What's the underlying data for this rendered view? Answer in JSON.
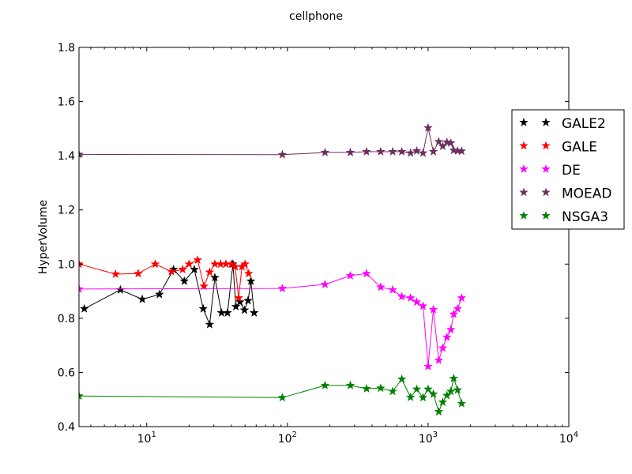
{
  "chart_data": {
    "type": "line",
    "title": "cellphone",
    "xlabel": "",
    "ylabel": "HyperVolume",
    "xscale": "log",
    "xlim": [
      3.3,
      10000
    ],
    "ylim": [
      0.4,
      1.8
    ],
    "yticks": [
      "0.4",
      "0.6",
      "0.8",
      "1.0",
      "1.2",
      "1.4",
      "1.6",
      "1.8"
    ],
    "xticks": [
      {
        "value": 10,
        "base": "10",
        "exp": "1"
      },
      {
        "value": 100,
        "base": "10",
        "exp": "2"
      },
      {
        "value": 1000,
        "base": "10",
        "exp": "3"
      },
      {
        "value": 10000,
        "base": "10",
        "exp": "4"
      }
    ],
    "grid": false,
    "legend_position": "right",
    "series": [
      {
        "name": "GALE2",
        "color": "#000000",
        "points": [
          [
            3.6,
            0.835
          ],
          [
            6.5,
            0.905
          ],
          [
            9.3,
            0.87
          ],
          [
            12.3,
            0.888
          ],
          [
            15.5,
            0.98
          ],
          [
            18.5,
            0.937
          ],
          [
            21.8,
            0.98
          ],
          [
            25.2,
            0.835
          ],
          [
            28,
            0.777
          ],
          [
            30.5,
            0.95
          ],
          [
            34,
            0.82
          ],
          [
            37.5,
            0.82
          ],
          [
            41,
            1.0
          ],
          [
            43,
            0.843
          ],
          [
            46,
            0.86
          ],
          [
            49.5,
            0.83
          ],
          [
            52.5,
            0.865
          ],
          [
            55,
            0.937
          ],
          [
            58,
            0.82
          ]
        ]
      },
      {
        "name": "GALE",
        "color": "#ff0000",
        "points": [
          [
            3.3,
            1.0
          ],
          [
            6,
            0.963
          ],
          [
            8.7,
            0.965
          ],
          [
            11.5,
            1.0
          ],
          [
            15,
            0.972
          ],
          [
            18,
            0.98
          ],
          [
            20,
            1.0
          ],
          [
            23,
            1.015
          ],
          [
            25.5,
            0.918
          ],
          [
            28,
            0.97
          ],
          [
            30.5,
            1.0
          ],
          [
            33.5,
            1.0
          ],
          [
            36.5,
            1.0
          ],
          [
            40,
            1.0
          ],
          [
            42.5,
            0.99
          ],
          [
            45,
            0.875
          ],
          [
            47.5,
            0.99
          ],
          [
            50,
            1.0
          ],
          [
            53,
            0.965
          ]
        ]
      },
      {
        "name": "DE",
        "color": "#ff00ff",
        "points": [
          [
            3.3,
            0.908
          ],
          [
            92,
            0.91
          ],
          [
            185,
            0.925
          ],
          [
            280,
            0.957
          ],
          [
            365,
            0.965
          ],
          [
            460,
            0.915
          ],
          [
            560,
            0.905
          ],
          [
            650,
            0.88
          ],
          [
            750,
            0.875
          ],
          [
            830,
            0.86
          ],
          [
            920,
            0.845
          ],
          [
            1000,
            0.622
          ],
          [
            1090,
            0.832
          ],
          [
            1190,
            0.645
          ],
          [
            1270,
            0.69
          ],
          [
            1360,
            0.73
          ],
          [
            1450,
            0.758
          ],
          [
            1520,
            0.815
          ],
          [
            1620,
            0.835
          ],
          [
            1730,
            0.875
          ]
        ]
      },
      {
        "name": "MOEAD",
        "color": "#6b2f5f",
        "points": [
          [
            3.3,
            1.405
          ],
          [
            92,
            1.404
          ],
          [
            185,
            1.412
          ],
          [
            280,
            1.412
          ],
          [
            365,
            1.415
          ],
          [
            460,
            1.415
          ],
          [
            560,
            1.415
          ],
          [
            650,
            1.415
          ],
          [
            750,
            1.41
          ],
          [
            830,
            1.418
          ],
          [
            920,
            1.41
          ],
          [
            1000,
            1.503
          ],
          [
            1090,
            1.415
          ],
          [
            1190,
            1.452
          ],
          [
            1270,
            1.435
          ],
          [
            1360,
            1.45
          ],
          [
            1450,
            1.447
          ],
          [
            1520,
            1.42
          ],
          [
            1620,
            1.418
          ],
          [
            1730,
            1.417
          ]
        ]
      },
      {
        "name": "NSGA3",
        "color": "#008000",
        "points": [
          [
            3.3,
            0.513
          ],
          [
            92,
            0.507
          ],
          [
            185,
            0.552
          ],
          [
            280,
            0.552
          ],
          [
            365,
            0.54
          ],
          [
            460,
            0.542
          ],
          [
            560,
            0.53
          ],
          [
            650,
            0.575
          ],
          [
            750,
            0.508
          ],
          [
            830,
            0.538
          ],
          [
            920,
            0.507
          ],
          [
            1000,
            0.538
          ],
          [
            1090,
            0.52
          ],
          [
            1190,
            0.455
          ],
          [
            1270,
            0.49
          ],
          [
            1360,
            0.515
          ],
          [
            1450,
            0.53
          ],
          [
            1520,
            0.578
          ],
          [
            1620,
            0.535
          ],
          [
            1730,
            0.485
          ]
        ]
      }
    ]
  }
}
